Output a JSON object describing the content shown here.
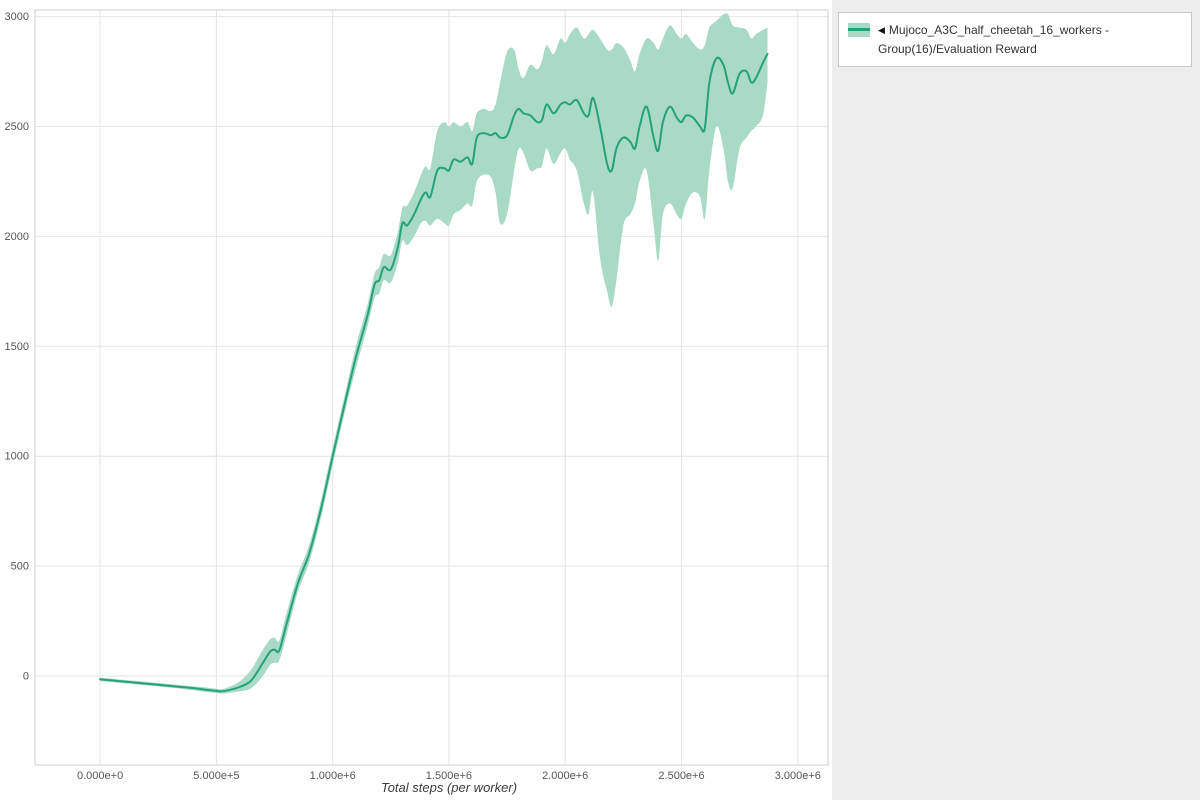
{
  "legend": {
    "collapse_marker": "◀",
    "label": "Mujoco_A3C_half_cheetah_16_workers - Group(16)/Evaluation Reward"
  },
  "chart_data": {
    "type": "line",
    "title": "",
    "xlabel": "Total steps (per worker)",
    "ylabel": "",
    "grid": true,
    "legend_position": "top-right",
    "xlim": [
      -280000,
      3130000
    ],
    "ylim": [
      -405,
      3030
    ],
    "x_ticks": [
      {
        "value": 0,
        "label": "0.000e+0"
      },
      {
        "value": 500000,
        "label": "5.000e+5"
      },
      {
        "value": 1000000,
        "label": "1.000e+6"
      },
      {
        "value": 1500000,
        "label": "1.500e+6"
      },
      {
        "value": 2000000,
        "label": "2.000e+6"
      },
      {
        "value": 2500000,
        "label": "2.500e+6"
      },
      {
        "value": 3000000,
        "label": "3.000e+6"
      }
    ],
    "y_ticks": [
      {
        "value": 0,
        "label": "0"
      },
      {
        "value": 500,
        "label": "500"
      },
      {
        "value": 1000,
        "label": "1000"
      },
      {
        "value": 1500,
        "label": "1500"
      },
      {
        "value": 2000,
        "label": "2000"
      },
      {
        "value": 2500,
        "label": "2500"
      },
      {
        "value": 3000,
        "label": "3000"
      }
    ],
    "series": [
      {
        "name": "Mujoco_A3C_half_cheetah_16_workers - Group(16)/Evaluation Reward",
        "color": "#26a17b",
        "band_color": "#a8dac6",
        "x": [
          0,
          50000,
          100000,
          150000,
          200000,
          250000,
          300000,
          350000,
          400000,
          450000,
          500000,
          520000,
          550000,
          600000,
          650000,
          700000,
          730000,
          750000,
          770000,
          800000,
          850000,
          900000,
          950000,
          1000000,
          1050000,
          1100000,
          1150000,
          1180000,
          1200000,
          1220000,
          1250000,
          1280000,
          1300000,
          1320000,
          1350000,
          1380000,
          1400000,
          1420000,
          1450000,
          1480000,
          1500000,
          1520000,
          1550000,
          1580000,
          1600000,
          1620000,
          1650000,
          1680000,
          1700000,
          1720000,
          1750000,
          1780000,
          1800000,
          1820000,
          1850000,
          1880000,
          1900000,
          1920000,
          1950000,
          1980000,
          2000000,
          2020000,
          2050000,
          2080000,
          2100000,
          2120000,
          2150000,
          2180000,
          2200000,
          2220000,
          2250000,
          2280000,
          2300000,
          2320000,
          2350000,
          2380000,
          2400000,
          2420000,
          2450000,
          2480000,
          2500000,
          2520000,
          2550000,
          2580000,
          2600000,
          2620000,
          2650000,
          2680000,
          2700000,
          2720000,
          2750000,
          2780000,
          2800000,
          2820000,
          2850000,
          2870000
        ],
        "mean": [
          -15,
          -20,
          -25,
          -30,
          -35,
          -40,
          -45,
          -50,
          -55,
          -62,
          -68,
          -70,
          -65,
          -50,
          -20,
          60,
          110,
          120,
          115,
          230,
          420,
          560,
          760,
          1000,
          1230,
          1450,
          1640,
          1780,
          1800,
          1860,
          1850,
          1950,
          2060,
          2050,
          2100,
          2170,
          2200,
          2180,
          2300,
          2310,
          2300,
          2350,
          2340,
          2360,
          2330,
          2450,
          2470,
          2460,
          2470,
          2450,
          2460,
          2550,
          2580,
          2560,
          2550,
          2520,
          2530,
          2600,
          2560,
          2600,
          2610,
          2600,
          2620,
          2560,
          2550,
          2630,
          2500,
          2330,
          2300,
          2400,
          2450,
          2430,
          2400,
          2500,
          2590,
          2450,
          2390,
          2520,
          2590,
          2540,
          2520,
          2550,
          2540,
          2500,
          2490,
          2700,
          2810,
          2780,
          2700,
          2650,
          2740,
          2750,
          2700,
          2720,
          2790,
          2830
        ],
        "low": [
          -25,
          -28,
          -33,
          -38,
          -43,
          -48,
          -53,
          -58,
          -65,
          -72,
          -78,
          -80,
          -78,
          -70,
          -55,
          0,
          50,
          60,
          70,
          180,
          380,
          520,
          720,
          960,
          1190,
          1400,
          1590,
          1720,
          1740,
          1800,
          1790,
          1880,
          1980,
          1960,
          2000,
          2060,
          2070,
          2050,
          2080,
          2060,
          2050,
          2100,
          2120,
          2150,
          2140,
          2250,
          2280,
          2270,
          2200,
          2060,
          2100,
          2300,
          2400,
          2380,
          2300,
          2310,
          2320,
          2400,
          2330,
          2380,
          2400,
          2350,
          2300,
          2150,
          2100,
          2200,
          1900,
          1750,
          1680,
          1800,
          2050,
          2100,
          2150,
          2250,
          2300,
          2050,
          1890,
          2100,
          2150,
          2100,
          2080,
          2150,
          2200,
          2180,
          2080,
          2300,
          2500,
          2400,
          2250,
          2220,
          2400,
          2450,
          2480,
          2500,
          2550,
          2700
        ],
        "high": [
          -8,
          -12,
          -18,
          -22,
          -27,
          -32,
          -37,
          -42,
          -47,
          -52,
          -58,
          -60,
          -52,
          -25,
          30,
          120,
          165,
          175,
          160,
          280,
          460,
          600,
          800,
          1040,
          1270,
          1500,
          1690,
          1830,
          1860,
          1920,
          1915,
          2020,
          2130,
          2140,
          2200,
          2280,
          2320,
          2310,
          2480,
          2520,
          2500,
          2520,
          2500,
          2520,
          2480,
          2560,
          2580,
          2570,
          2600,
          2700,
          2840,
          2850,
          2760,
          2720,
          2780,
          2760,
          2800,
          2870,
          2830,
          2900,
          2880,
          2920,
          2950,
          2900,
          2920,
          2940,
          2900,
          2850,
          2850,
          2880,
          2860,
          2800,
          2750,
          2830,
          2900,
          2880,
          2850,
          2900,
          2960,
          2920,
          2900,
          2920,
          2880,
          2850,
          2870,
          2950,
          2980,
          3010,
          3010,
          2960,
          2950,
          2940,
          2900,
          2920,
          2940,
          2950
        ]
      }
    ]
  }
}
